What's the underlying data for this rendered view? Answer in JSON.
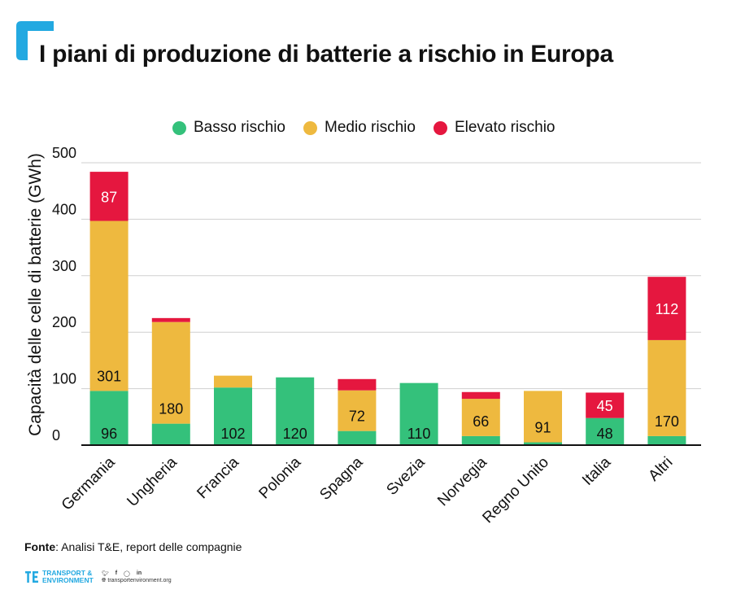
{
  "title": "I piani di produzione di batterie a rischio in Europa",
  "legend": [
    {
      "label": "Basso rischio",
      "color": "#34c17b"
    },
    {
      "label": "Medio rischio",
      "color": "#eeb93f"
    },
    {
      "label": "Elevato rischio",
      "color": "#e5173f"
    }
  ],
  "source": {
    "label": "Fonte",
    "text": ": Analisi T&E, report delle compagnie"
  },
  "footer": {
    "brand_line1": "TRANSPORT &",
    "brand_line2": "ENVIRONMENT",
    "website": "transportenvironment.org",
    "icons": [
      "twitter-icon",
      "facebook-icon",
      "instagram-icon",
      "linkedin-icon"
    ]
  },
  "colors": {
    "accent": "#23a9e1",
    "low": "#34c17b",
    "mid": "#eeb93f",
    "high": "#e5173f"
  },
  "chart_data": {
    "type": "bar",
    "stacked": true,
    "title": "I piani di produzione di batterie a rischio in Europa",
    "ylabel": "Capacità delle celle di batterie (GWh)",
    "xlabel": "",
    "ylim": [
      0,
      500
    ],
    "yticks": [
      0,
      100,
      200,
      300,
      400,
      500
    ],
    "grid": true,
    "legend_position": "top-center",
    "categories": [
      "Germania",
      "Ungheria",
      "Francia",
      "Polonia",
      "Spagna",
      "Svezia",
      "Norvegia",
      "Regno Unito",
      "Italia",
      "Altri"
    ],
    "series": [
      {
        "name": "Basso rischio",
        "color": "#34c17b",
        "values": [
          96,
          38,
          102,
          120,
          25,
          110,
          16,
          5,
          48,
          16
        ],
        "labels": [
          "96",
          "",
          "102",
          "120",
          "",
          "110",
          "",
          "",
          "48",
          ""
        ]
      },
      {
        "name": "Medio rischio",
        "color": "#eeb93f",
        "values": [
          301,
          180,
          21,
          0,
          72,
          0,
          66,
          91,
          0,
          170
        ],
        "labels": [
          "301",
          "180",
          "",
          "",
          "72",
          "",
          "66",
          "91",
          "",
          "170"
        ]
      },
      {
        "name": "Elevato rischio",
        "color": "#e5173f",
        "values": [
          87,
          7,
          0,
          0,
          20,
          0,
          12,
          0,
          45,
          112
        ],
        "labels": [
          "87",
          "",
          "",
          "",
          "",
          "",
          "",
          "",
          "45",
          "112"
        ]
      }
    ]
  }
}
